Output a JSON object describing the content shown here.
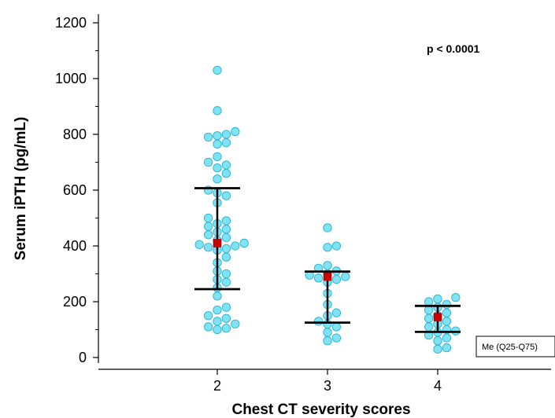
{
  "chart_data": {
    "type": "scatter",
    "title": "",
    "xlabel": "Chest CT severity scores",
    "ylabel": "Serum iPTH (pg/mL)",
    "ylim": [
      0,
      1200
    ],
    "yticks": [
      0,
      200,
      400,
      600,
      800,
      1000,
      1200
    ],
    "categories": [
      "2",
      "3",
      "4"
    ],
    "annotation": "p < 0.0001",
    "legend": {
      "label": "Me (Q25-Q75)",
      "placement": "bottom-right"
    },
    "colors": {
      "points": "#7fe3f4",
      "point_edge": "#2ab2cf",
      "median": "#cc0000",
      "bars": "#000000"
    },
    "groups": [
      {
        "category": "2",
        "median": 410,
        "q25": 245,
        "q75": 607,
        "values": [
          1030,
          885,
          810,
          800,
          795,
          790,
          770,
          765,
          720,
          700,
          690,
          680,
          660,
          640,
          600,
          590,
          580,
          555,
          500,
          490,
          480,
          470,
          460,
          450,
          440,
          430,
          420,
          410,
          405,
          400,
          395,
          390,
          385,
          360,
          340,
          310,
          300,
          280,
          270,
          250,
          220,
          180,
          170,
          150,
          140,
          130,
          120,
          110,
          105,
          100
        ]
      },
      {
        "category": "3",
        "median": 290,
        "q25": 125,
        "q75": 308,
        "values": [
          465,
          400,
          395,
          330,
          320,
          310,
          300,
          295,
          290,
          285,
          280,
          270,
          230,
          190,
          160,
          150,
          130,
          120,
          110,
          90,
          70,
          60
        ]
      },
      {
        "category": "4",
        "median": 145,
        "q25": 92,
        "q75": 185,
        "values": [
          215,
          210,
          200,
          190,
          180,
          170,
          160,
          150,
          140,
          130,
          120,
          110,
          100,
          95,
          90,
          80,
          70,
          60,
          35,
          30
        ]
      }
    ]
  }
}
